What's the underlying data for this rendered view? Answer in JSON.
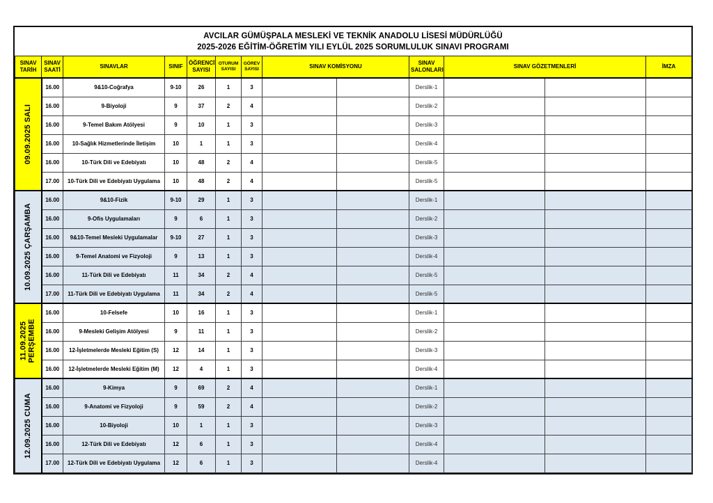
{
  "title": {
    "line1": "AVCILAR GÜMÜŞPALA MESLEKİ VE TEKNİK ANADOLU LİSESİ MÜDÜRLÜĞÜ",
    "line2": "2025-2026 EĞİTİM-ÖĞRETİM YILI EYLÜL 2025 SORUMLULUK SINAVI PROGRAMI"
  },
  "headers": {
    "date": "SINAV TARİH",
    "time": "SINAV SAATİ",
    "exams": "SINAVLAR",
    "grade": "SINIF",
    "students": "ÖĞRENCİ SAYISI",
    "sessions": "OTURUM SAYISI",
    "duty": "GÖREV SAYISI",
    "commission": "SINAV KOMİSYONU",
    "rooms": "SINAV SALONLARI",
    "proctors": "SINAV GÖZETMENLERİ",
    "signature": "İMZA"
  },
  "colors": {
    "header_bg": "#ffff00",
    "yellow_group_bg": "#ffff00",
    "blue_group_bg": "#dce6f1",
    "border": "#000000"
  },
  "schedule": {
    "groups": [
      {
        "date": "09.09.2025",
        "day": "SALI",
        "color": "yellow",
        "rows": [
          {
            "time": "16.00",
            "exam": "9&10-Coğrafya",
            "grade": "9-10",
            "students": "26",
            "sessions": "1",
            "duty": "3",
            "room": "Derslik-1",
            "commission": "",
            "proctors": "",
            "signature": ""
          },
          {
            "time": "16.00",
            "exam": "9-Biyoloji",
            "grade": "9",
            "students": "37",
            "sessions": "2",
            "duty": "4",
            "room": "Derslik-2",
            "commission": "",
            "proctors": "",
            "signature": ""
          },
          {
            "time": "16.00",
            "exam": "9-Temel Bakım Atölyesi",
            "grade": "9",
            "students": "10",
            "sessions": "1",
            "duty": "3",
            "room": "Derslik-3",
            "commission": "",
            "proctors": "",
            "signature": ""
          },
          {
            "time": "16.00",
            "exam": "10-Sağlık Hizmetlerinde İletişim",
            "grade": "10",
            "students": "1",
            "sessions": "1",
            "duty": "3",
            "room": "Derslik-4",
            "commission": "",
            "proctors": "",
            "signature": ""
          },
          {
            "time": "16.00",
            "exam": "10-Türk Dili ve Edebiyatı",
            "grade": "10",
            "students": "48",
            "sessions": "2",
            "duty": "4",
            "room": "Derslik-5",
            "commission": "",
            "proctors": "",
            "signature": ""
          },
          {
            "time": "17.00",
            "exam": "10-Türk Dili ve Edebiyatı Uygulama",
            "grade": "10",
            "students": "48",
            "sessions": "2",
            "duty": "4",
            "room": "Derslik-5",
            "commission": "",
            "proctors": "",
            "signature": ""
          }
        ]
      },
      {
        "date": "10.09.2025",
        "day": "ÇARŞAMBA",
        "color": "blue",
        "rows": [
          {
            "time": "16.00",
            "exam": "9&10-Fizik",
            "grade": "9-10",
            "students": "29",
            "sessions": "1",
            "duty": "3",
            "room": "Derslik-1",
            "commission": "",
            "proctors": "",
            "signature": ""
          },
          {
            "time": "16.00",
            "exam": "9-Ofis Uygulamaları",
            "grade": "9",
            "students": "6",
            "sessions": "1",
            "duty": "3",
            "room": "Derslik-2",
            "commission": "",
            "proctors": "",
            "signature": ""
          },
          {
            "time": "16.00",
            "exam": "9&10-Temel Mesleki Uygulamalar",
            "grade": "9-10",
            "students": "27",
            "sessions": "1",
            "duty": "3",
            "room": "Derslik-3",
            "commission": "",
            "proctors": "",
            "signature": ""
          },
          {
            "time": "16.00",
            "exam": "9-Temel Anatomi ve Fizyoloji",
            "grade": "9",
            "students": "13",
            "sessions": "1",
            "duty": "3",
            "room": "Derslik-4",
            "commission": "",
            "proctors": "",
            "signature": ""
          },
          {
            "time": "16.00",
            "exam": "11-Türk Dili ve Edebiyatı",
            "grade": "11",
            "students": "34",
            "sessions": "2",
            "duty": "4",
            "room": "Derslik-5",
            "commission": "",
            "proctors": "",
            "signature": ""
          },
          {
            "time": "17.00",
            "exam": "11-Türk Dili ve Edebiyatı Uygulama",
            "grade": "11",
            "students": "34",
            "sessions": "2",
            "duty": "4",
            "room": "Derslik-5",
            "commission": "",
            "proctors": "",
            "signature": ""
          }
        ]
      },
      {
        "date": "11.09.2025",
        "day": "PERŞEMBE",
        "color": "yellow",
        "rows": [
          {
            "time": "16.00",
            "exam": "10-Felsefe",
            "grade": "10",
            "students": "16",
            "sessions": "1",
            "duty": "3",
            "room": "Derslik-1",
            "commission": "",
            "proctors": "",
            "signature": ""
          },
          {
            "time": "16.00",
            "exam": "9-Mesleki Gelişim Atölyesi",
            "grade": "9",
            "students": "11",
            "sessions": "1",
            "duty": "3",
            "room": "Derslik-2",
            "commission": "",
            "proctors": "",
            "signature": ""
          },
          {
            "time": "16.00",
            "exam": "12-İşletmelerde Mesleki Eğitim (S)",
            "grade": "12",
            "students": "14",
            "sessions": "1",
            "duty": "3",
            "room": "Derslik-3",
            "commission": "",
            "proctors": "",
            "signature": ""
          },
          {
            "time": "16.00",
            "exam": "12-İşletmelerde Mesleki Eğitim (M)",
            "grade": "12",
            "students": "4",
            "sessions": "1",
            "duty": "3",
            "room": "Derslik-4",
            "commission": "",
            "proctors": "",
            "signature": ""
          }
        ]
      },
      {
        "date": "12.09.2025",
        "day": "CUMA",
        "color": "blue",
        "rows": [
          {
            "time": "16.00",
            "exam": "9-Kimya",
            "grade": "9",
            "students": "69",
            "sessions": "2",
            "duty": "4",
            "room": "Derslik-1",
            "commission": "",
            "proctors": "",
            "signature": ""
          },
          {
            "time": "16.00",
            "exam": "9-Anatomi ve Fizyoloji",
            "grade": "9",
            "students": "59",
            "sessions": "2",
            "duty": "4",
            "room": "Derslik-2",
            "commission": "",
            "proctors": "",
            "signature": ""
          },
          {
            "time": "16.00",
            "exam": "10-Biyoloji",
            "grade": "10",
            "students": "1",
            "sessions": "1",
            "duty": "3",
            "room": "Derslik-3",
            "commission": "",
            "proctors": "",
            "signature": ""
          },
          {
            "time": "16.00",
            "exam": "12-Türk Dili ve Edebiyatı",
            "grade": "12",
            "students": "6",
            "sessions": "1",
            "duty": "3",
            "room": "Derslik-4",
            "commission": "",
            "proctors": "",
            "signature": ""
          },
          {
            "time": "17.00",
            "exam": "12-Türk Dili ve Edebiyatı Uygulama",
            "grade": "12",
            "students": "6",
            "sessions": "1",
            "duty": "3",
            "room": "Derslik-4",
            "commission": "",
            "proctors": "",
            "signature": ""
          }
        ]
      }
    ]
  }
}
